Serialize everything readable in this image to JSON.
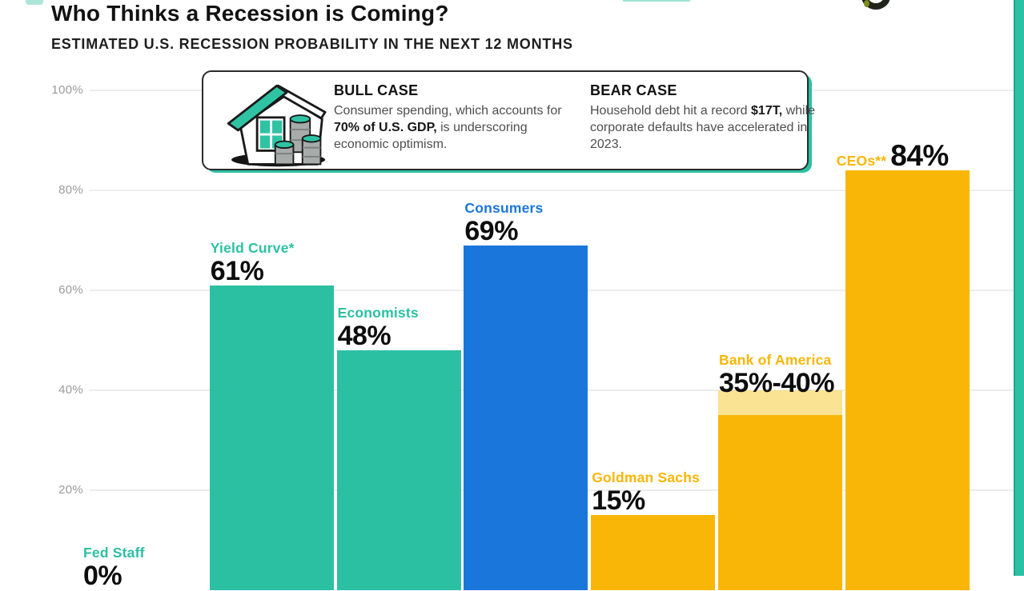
{
  "page": {
    "title": "Who Thinks a Recession is Coming?",
    "subtitle": "ESTIMATED U.S. RECESSION PROBABILITY IN THE NEXT 12 MONTHS"
  },
  "colors": {
    "teal": "#2CC0A3",
    "blue": "#1B76DC",
    "gold": "#FAB606",
    "gold_light": "#FAE392",
    "value_text": "#0D0D0D",
    "grid": "#EDEDED",
    "tick_text": "#9B9B9B"
  },
  "callout": {
    "house_icon": "house-with-coins-icon",
    "bull": {
      "heading": "BULL CASE",
      "body": [
        {
          "text": "Consumer spending, which accounts for ",
          "bold": false
        },
        {
          "text": "70% of U.S. GDP,",
          "bold": true
        },
        {
          "text": " is underscoring economic optimism.",
          "bold": false
        }
      ]
    },
    "bear": {
      "heading": "BEAR CASE",
      "body": [
        {
          "text": "Household debt hit a record ",
          "bold": false
        },
        {
          "text": "$17T,",
          "bold": true
        },
        {
          "text": " while corporate defaults have accelerated in 2023.",
          "bold": false
        }
      ]
    }
  },
  "chart_data": {
    "type": "bar",
    "title": "Who Thinks a Recession is Coming?",
    "subtitle": "ESTIMATED U.S. RECESSION PROBABILITY IN THE NEXT 12 MONTHS",
    "xlabel": "",
    "ylabel": "",
    "ylim": [
      0,
      100
    ],
    "grid": true,
    "legend": "none",
    "yticks": [
      {
        "value": 100,
        "label": "100%"
      },
      {
        "value": 80,
        "label": "80%"
      },
      {
        "value": 60,
        "label": "60%"
      },
      {
        "value": 40,
        "label": "40%"
      },
      {
        "value": 20,
        "label": "20%"
      }
    ],
    "categories": [
      "Fed Staff",
      "Yield Curve*",
      "Economists",
      "Consumers",
      "Goldman Sachs",
      "Bank of America",
      "CEOs**"
    ],
    "values": [
      0,
      61,
      48,
      69,
      15,
      [
        35,
        40
      ],
      84
    ],
    "bars": [
      {
        "category": "Fed Staff",
        "value": 0,
        "value_label": "0%",
        "color_key": "teal"
      },
      {
        "category": "Yield Curve*",
        "value": 61,
        "value_label": "61%",
        "color_key": "teal"
      },
      {
        "category": "Economists",
        "value": 48,
        "value_label": "48%",
        "color_key": "teal"
      },
      {
        "category": "Consumers",
        "value": 69,
        "value_label": "69%",
        "color_key": "blue"
      },
      {
        "category": "Goldman Sachs",
        "value": 15,
        "value_label": "15%",
        "color_key": "gold"
      },
      {
        "category": "Bank of America",
        "value": 35,
        "value_high": 40,
        "value_label": "35%-40%",
        "color_key": "gold",
        "range_cap_color_key": "gold_light"
      },
      {
        "category": "CEOs**",
        "value": 84,
        "value_label": "84%",
        "color_key": "gold",
        "inline_label": true
      }
    ]
  }
}
